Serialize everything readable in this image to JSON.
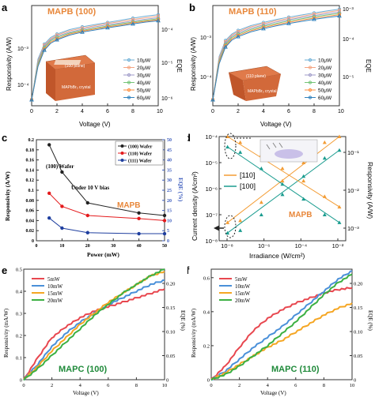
{
  "panels": {
    "a": {
      "letter": "a",
      "label": "MAPB (100)",
      "ylabel": "Responsivity (A/W)",
      "xlabel": "Voltage (V)",
      "y2label": "EQE",
      "xticks": [
        "0",
        "2",
        "4",
        "6",
        "8",
        "10"
      ],
      "yticks_left": [
        "10⁻³",
        "10⁻⁴"
      ],
      "yticks_right": [
        "10⁻⁴",
        "10⁻⁵",
        "10⁻⁶"
      ],
      "legend": [
        "10μW",
        "20μW",
        "30μW",
        "40μW",
        "50μW",
        "60μW"
      ],
      "crystal_top": "(100 plane)",
      "crystal_side": "MAPbBr₃ crystal"
    },
    "b": {
      "letter": "b",
      "label": "MAPB (110)",
      "ylabel": "Responsivity (A/W)",
      "xlabel": "Voltage (V)",
      "y2label": "EQE",
      "xticks": [
        "0",
        "2",
        "4",
        "6",
        "8",
        "10"
      ],
      "yticks_left": [
        "10⁻³",
        "10⁻⁴"
      ],
      "yticks_right": [
        "10⁻³",
        "10⁻⁴",
        "10⁻⁵"
      ],
      "legend": [
        "10μW",
        "20μW",
        "30μW",
        "40μW",
        "50μW",
        "60μW"
      ],
      "crystal_top": "(110 plane)",
      "crystal_side": "MAPbBr₃ crystal"
    },
    "c": {
      "letter": "c",
      "label": "MAPB",
      "ylabel": "Responsivity (A/W)",
      "xlabel": "Power (mW)",
      "y2label": "EQE (%)",
      "note1": "(100) Wafer",
      "note2": "Under 10 V bias",
      "xticks": [
        "0",
        "10",
        "20",
        "30",
        "40",
        "50"
      ],
      "yticks_left": [
        "0",
        "0.02",
        "0.04",
        "0.06",
        "0.08",
        "0.1",
        "0.12",
        "0.14",
        "0.16",
        "0.18",
        "0.2"
      ],
      "yticks_right": [
        "0",
        "5",
        "10",
        "15",
        "20",
        "25",
        "30",
        "35",
        "40",
        "45",
        "50"
      ],
      "legend": [
        "(100) Wafer",
        "(110) Wafer",
        "(111) Wafer"
      ]
    },
    "d": {
      "letter": "d",
      "label": "MAPB",
      "ylabel": "Current density (A/cm²)",
      "xlabel": "Irradiance (W/cm²)",
      "y2label": "Responsivity (A/W)",
      "xticks": [
        "10⁻⁸",
        "10⁻⁶",
        "10⁻⁴",
        "10⁻²"
      ],
      "yticks_left": [
        "10⁻⁴",
        "10⁻⁵",
        "10⁻⁶",
        "10⁻⁷",
        "10⁻⁸"
      ],
      "yticks_right": [
        "10⁻¹",
        "10⁻²",
        "10⁻³"
      ],
      "legend": [
        "[110]",
        "[100]"
      ]
    },
    "e": {
      "letter": "e",
      "label": "MAPC (100)",
      "ylabel": "Responsivity (mA/W)",
      "xlabel": "Voltage (V)",
      "y2label": "EQE (%)",
      "xticks": [
        "0",
        "2",
        "4",
        "6",
        "8",
        "10"
      ],
      "yticks_left": [
        "0",
        "0.1",
        "0.2",
        "0.3",
        "0.4",
        "0.5"
      ],
      "yticks_right": [
        "0",
        "0.05",
        "0.10",
        "0.15",
        "0.20"
      ],
      "legend": [
        "5mW",
        "10mW",
        "15mW",
        "20mW"
      ]
    },
    "f": {
      "letter": "f",
      "label": "MAPC (110)",
      "ylabel": "Responsivity (mA/W)",
      "xlabel": "Voltage (V)",
      "y2label": "EQE (%)",
      "xticks": [
        "0",
        "2",
        "4",
        "6",
        "8",
        "10"
      ],
      "yticks_left": [
        "0",
        "0.2",
        "0.4",
        "0.6"
      ],
      "yticks_right": [
        "0",
        "0.05",
        "0.10",
        "0.15",
        "0.20"
      ],
      "legend": [
        "5mW",
        "10mW",
        "15mW",
        "20mW"
      ]
    }
  },
  "colors": {
    "p1": "#6baed6",
    "p2": "#f4a582",
    "p3": "#9e9ac8",
    "p4": "#74c476",
    "p5": "#fd8d3c",
    "p6": "#3182bd",
    "c100": "#222222",
    "c110": "#e41a1c",
    "c111": "#1f3f9f",
    "d110": "#f39c34",
    "d100": "#1a9c8f",
    "e5": "#e8474f",
    "e10": "#4a90d9",
    "e15": "#f5a623",
    "e20": "#3cb043",
    "label_orange": "#e8873a",
    "label_green": "#1f8a3a",
    "eqe_axis": "#3b5bbd"
  },
  "chart_data": [
    {
      "panel": "a",
      "type": "line",
      "title": "MAPB (100)",
      "xlabel": "Voltage (V)",
      "ylabel": "Responsivity (A/W)",
      "xlim": [
        0,
        10
      ],
      "ylim_log": [
        1e-05,
        0.01
      ],
      "y_scale": "log",
      "x": [
        0,
        0.5,
        1,
        1.5,
        2,
        3,
        4,
        5,
        6,
        7,
        8,
        9,
        10
      ],
      "series": [
        {
          "name": "10μW",
          "values": [
            1.5e-05,
            0.00025,
            0.0007,
            0.0011,
            0.0014,
            0.0019,
            0.0023,
            0.0027,
            0.0031,
            0.0036,
            0.0042,
            0.0048,
            0.0053
          ]
        },
        {
          "name": "20μW",
          "values": [
            1.5e-05,
            0.00022,
            0.00065,
            0.001,
            0.0013,
            0.00175,
            0.0021,
            0.0025,
            0.0029,
            0.0033,
            0.0038,
            0.0043,
            0.0048
          ]
        },
        {
          "name": "30μW",
          "values": [
            1.5e-05,
            0.0002,
            0.0006,
            0.00095,
            0.0012,
            0.0016,
            0.00195,
            0.0023,
            0.00265,
            0.003,
            0.00345,
            0.0039,
            0.0043
          ]
        },
        {
          "name": "40μW",
          "values": [
            1.5e-05,
            0.00018,
            0.00055,
            0.00088,
            0.0011,
            0.0015,
            0.0018,
            0.0021,
            0.00245,
            0.0028,
            0.0032,
            0.0036,
            0.004
          ]
        },
        {
          "name": "50μW",
          "values": [
            1.5e-05,
            0.00016,
            0.0005,
            0.0008,
            0.001,
            0.0014,
            0.0017,
            0.002,
            0.0023,
            0.0026,
            0.003,
            0.0034,
            0.0037
          ]
        },
        {
          "name": "60μW",
          "values": [
            1.5e-05,
            0.00015,
            0.00046,
            0.00074,
            0.00094,
            0.0013,
            0.0016,
            0.00185,
            0.00215,
            0.00245,
            0.0028,
            0.0032,
            0.0035
          ]
        }
      ]
    },
    {
      "panel": "b",
      "type": "line",
      "title": "MAPB (110)",
      "xlabel": "Voltage (V)",
      "ylabel": "Responsivity (A/W)",
      "xlim": [
        0,
        10
      ],
      "ylim_log": [
        1e-05,
        0.01
      ],
      "y_scale": "log",
      "x": [
        0,
        0.5,
        1,
        1.5,
        2,
        3,
        4,
        5,
        6,
        7,
        8,
        9,
        10
      ],
      "series": [
        {
          "name": "10μW",
          "values": [
            1.5e-05,
            0.0003,
            0.0009,
            0.0014,
            0.0018,
            0.0025,
            0.0031,
            0.0038,
            0.0045,
            0.0052,
            0.006,
            0.0069,
            0.0078
          ]
        },
        {
          "name": "20μW",
          "values": [
            1.5e-05,
            0.00027,
            0.00082,
            0.0013,
            0.00165,
            0.0023,
            0.00285,
            0.0035,
            0.0041,
            0.00475,
            0.0055,
            0.0063,
            0.0071
          ]
        },
        {
          "name": "30μW",
          "values": [
            1.5e-05,
            0.00024,
            0.00075,
            0.0012,
            0.0015,
            0.0021,
            0.0026,
            0.0032,
            0.00375,
            0.00435,
            0.005,
            0.0057,
            0.0064
          ]
        },
        {
          "name": "40μW",
          "values": [
            1.5e-05,
            0.00022,
            0.00068,
            0.0011,
            0.00138,
            0.00192,
            0.0024,
            0.0029,
            0.00345,
            0.004,
            0.0046,
            0.0052,
            0.0058
          ]
        },
        {
          "name": "50μW",
          "values": [
            1.5e-05,
            0.0002,
            0.00062,
            0.001,
            0.00127,
            0.00177,
            0.0022,
            0.00268,
            0.00315,
            0.00365,
            0.0042,
            0.00475,
            0.0053
          ]
        },
        {
          "name": "60μW",
          "values": [
            1.5e-05,
            0.00018,
            0.00057,
            0.00092,
            0.00117,
            0.00163,
            0.00203,
            0.00247,
            0.0029,
            0.00335,
            0.00385,
            0.00435,
            0.00485
          ]
        }
      ]
    },
    {
      "panel": "c",
      "type": "line",
      "title": "",
      "xlabel": "Power (mW)",
      "ylabel": "Responsivity (A/W)",
      "xlim": [
        0,
        50
      ],
      "ylim": [
        0,
        0.2
      ],
      "x": [
        5,
        10,
        20,
        40,
        50
      ],
      "series": [
        {
          "name": "(100) Wafer",
          "values": [
            0.19,
            0.136,
            0.075,
            0.055,
            0.05
          ]
        },
        {
          "name": "(110) Wafer",
          "values": [
            0.094,
            0.068,
            0.05,
            0.044,
            0.04
          ]
        },
        {
          "name": "(111) Wafer",
          "values": [
            0.045,
            0.025,
            0.016,
            0.014,
            0.014
          ]
        }
      ]
    },
    {
      "panel": "d",
      "type": "scatter",
      "title": "",
      "xlabel": "Irradiance (W/cm²)",
      "ylabel": "Current density (A/cm²)",
      "xlim_log": [
        1e-08,
        0.01
      ],
      "ylim_log": [
        1e-08,
        0.0001
      ],
      "x_scale": "log",
      "y_scale": "log",
      "series": [
        {
          "name": "[110] current",
          "x": [
            2.5e-08,
            1e-07,
            1e-06,
            1e-05,
            0.0001,
            0.001,
            0.005
          ],
          "values": [
            5e-08,
            6e-08,
            3e-07,
            2e-06,
            1e-05,
            6e-05,
            0.0001
          ]
        },
        {
          "name": "[100] current",
          "x": [
            2.5e-08,
            1e-07,
            1e-06,
            1e-05,
            0.0001,
            0.001,
            0.005
          ],
          "values": [
            2e-08,
            2.5e-08,
            1e-07,
            6e-07,
            3e-06,
            1.5e-05,
            3e-05
          ]
        },
        {
          "name": "[110] responsivity",
          "x": [
            2.5e-08,
            1e-07,
            1e-06,
            1e-05,
            0.0001,
            0.001,
            0.005
          ],
          "values": [
            0.0001,
            6e-05,
            2e-05,
            6e-06,
            2e-06,
            5e-07,
            2e-07
          ]
        },
        {
          "name": "[100] responsivity",
          "x": [
            2.5e-08,
            1e-07,
            1e-06,
            1e-05,
            0.0001,
            0.001,
            0.005
          ],
          "values": [
            4e-05,
            2.5e-05,
            6e-06,
            1.5e-06,
            4e-07,
            1e-07,
            5e-08
          ]
        }
      ]
    },
    {
      "panel": "e",
      "type": "line",
      "title": "MAPC (100)",
      "xlabel": "Voltage (V)",
      "ylabel": "Responsivity (mA/W)",
      "xlim": [
        0,
        10
      ],
      "ylim": [
        0,
        0.5
      ],
      "x": [
        0,
        1,
        2,
        3,
        4,
        5,
        6,
        7,
        8,
        9,
        10
      ],
      "series": [
        {
          "name": "5mW",
          "values": [
            0,
            0.1,
            0.19,
            0.24,
            0.28,
            0.31,
            0.33,
            0.35,
            0.37,
            0.39,
            0.41
          ]
        },
        {
          "name": "10mW",
          "values": [
            0,
            0.07,
            0.15,
            0.21,
            0.26,
            0.3,
            0.34,
            0.37,
            0.4,
            0.43,
            0.45
          ]
        },
        {
          "name": "15mW",
          "values": [
            0,
            0.06,
            0.13,
            0.19,
            0.25,
            0.3,
            0.35,
            0.39,
            0.43,
            0.47,
            0.49
          ]
        },
        {
          "name": "20mW",
          "values": [
            0,
            0.05,
            0.11,
            0.17,
            0.23,
            0.29,
            0.34,
            0.39,
            0.43,
            0.47,
            0.5
          ]
        }
      ]
    },
    {
      "panel": "f",
      "type": "line",
      "title": "MAPC (110)",
      "xlabel": "Voltage (V)",
      "ylabel": "Responsivity (mA/W)",
      "xlim": [
        0,
        10
      ],
      "ylim": [
        0,
        0.65
      ],
      "x": [
        0,
        1,
        2,
        3,
        4,
        5,
        6,
        7,
        8,
        9,
        10
      ],
      "series": [
        {
          "name": "5mW",
          "values": [
            0,
            0.08,
            0.19,
            0.29,
            0.36,
            0.41,
            0.45,
            0.48,
            0.51,
            0.53,
            0.54
          ]
        },
        {
          "name": "10mW",
          "values": [
            0,
            0.05,
            0.12,
            0.19,
            0.25,
            0.31,
            0.38,
            0.45,
            0.52,
            0.59,
            0.64
          ]
        },
        {
          "name": "15mW",
          "values": [
            0,
            0.04,
            0.09,
            0.14,
            0.19,
            0.23,
            0.28,
            0.33,
            0.38,
            0.42,
            0.45
          ]
        },
        {
          "name": "20mW",
          "values": [
            0,
            0.03,
            0.08,
            0.14,
            0.2,
            0.27,
            0.34,
            0.42,
            0.5,
            0.57,
            0.62
          ]
        }
      ]
    }
  ]
}
